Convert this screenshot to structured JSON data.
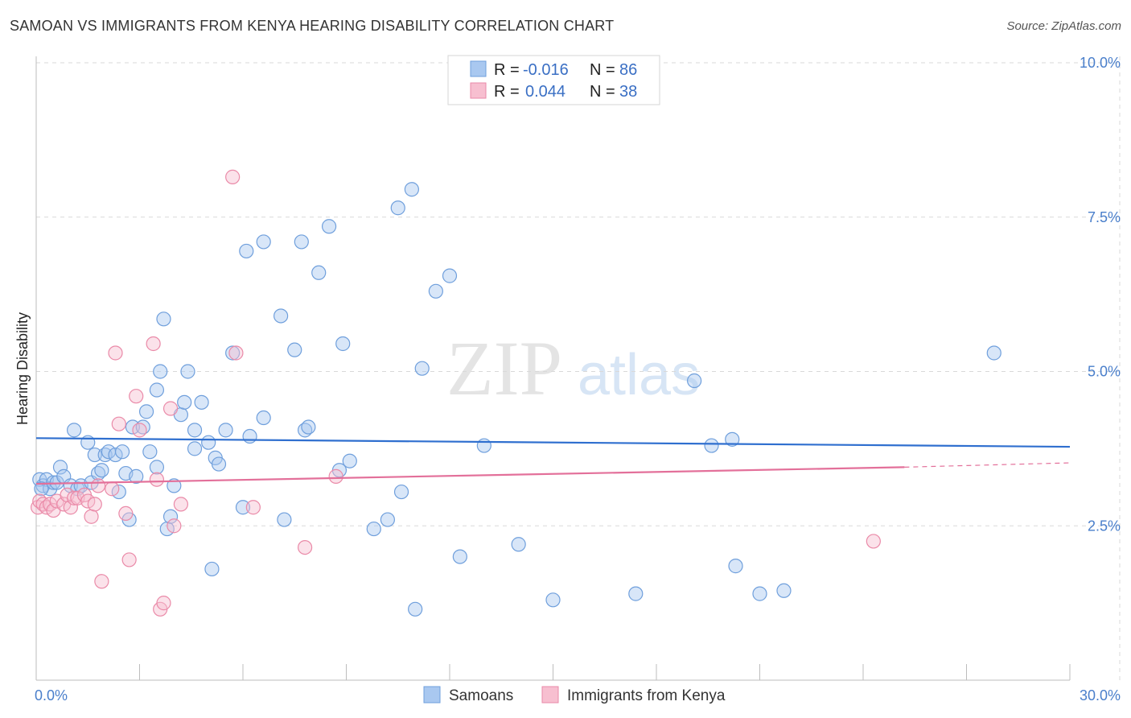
{
  "header": {
    "title": "SAMOAN VS IMMIGRANTS FROM KENYA HEARING DISABILITY CORRELATION CHART",
    "source": "Source: ZipAtlas.com"
  },
  "watermark": {
    "zip": "ZIP",
    "atlas": "atlas"
  },
  "colors": {
    "blue_fill": "#a9c8f0",
    "blue_stroke": "#6f9fdc",
    "blue_line": "#2f6fcf",
    "pink_fill": "#f7bfd0",
    "pink_stroke": "#ea8aa8",
    "pink_line": "#e3709a",
    "grid": "#d9d9d9",
    "tick_text": "#4a7fcb"
  },
  "legend": {
    "rows": [
      {
        "r_label": "R =",
        "r_value": "-0.016",
        "n_label": "N =",
        "n_value": "86"
      },
      {
        "r_label": "R =",
        "r_value": "0.044",
        "n_label": "N =",
        "n_value": "38"
      }
    ]
  },
  "chart_data": {
    "type": "scatter",
    "title": "SAMOAN VS IMMIGRANTS FROM KENYA HEARING DISABILITY CORRELATION CHART",
    "xlabel": "",
    "ylabel": "Hearing Disability",
    "xlim": [
      0,
      30
    ],
    "ylim": [
      0,
      10
    ],
    "x_ticks": [
      {
        "value": 0,
        "label": "0.0%"
      },
      {
        "value": 30,
        "label": "30.0%"
      }
    ],
    "y_ticks": [
      {
        "value": 2.5,
        "label": "2.5%"
      },
      {
        "value": 5.0,
        "label": "5.0%"
      },
      {
        "value": 7.5,
        "label": "7.5%"
      },
      {
        "value": 10.0,
        "label": "10.0%"
      }
    ],
    "grid": true,
    "legend_position": "top-center",
    "series": [
      {
        "name": "Samoans",
        "color": "#6f9fdc",
        "trend": {
          "x": [
            0,
            30
          ],
          "y": [
            3.92,
            3.78
          ]
        },
        "points": [
          [
            0.1,
            3.25
          ],
          [
            0.2,
            3.15
          ],
          [
            0.3,
            3.25
          ],
          [
            0.4,
            3.1
          ],
          [
            0.5,
            3.2
          ],
          [
            0.6,
            3.2
          ],
          [
            0.7,
            3.45
          ],
          [
            0.8,
            3.3
          ],
          [
            1.0,
            3.15
          ],
          [
            1.1,
            4.05
          ],
          [
            1.2,
            3.1
          ],
          [
            1.3,
            3.15
          ],
          [
            1.5,
            3.85
          ],
          [
            1.6,
            3.2
          ],
          [
            1.7,
            3.65
          ],
          [
            1.8,
            3.35
          ],
          [
            1.9,
            3.4
          ],
          [
            2.0,
            3.65
          ],
          [
            2.1,
            3.7
          ],
          [
            2.3,
            3.65
          ],
          [
            2.4,
            3.05
          ],
          [
            2.5,
            3.7
          ],
          [
            2.6,
            3.35
          ],
          [
            2.7,
            2.6
          ],
          [
            2.8,
            4.1
          ],
          [
            2.9,
            3.3
          ],
          [
            3.1,
            4.1
          ],
          [
            3.2,
            4.35
          ],
          [
            3.3,
            3.7
          ],
          [
            3.5,
            4.7
          ],
          [
            3.5,
            3.45
          ],
          [
            3.6,
            5.0
          ],
          [
            3.7,
            5.85
          ],
          [
            3.8,
            2.45
          ],
          [
            3.9,
            2.65
          ],
          [
            4.0,
            3.15
          ],
          [
            4.2,
            4.3
          ],
          [
            4.3,
            4.5
          ],
          [
            4.4,
            5.0
          ],
          [
            4.6,
            4.05
          ],
          [
            4.6,
            3.75
          ],
          [
            4.8,
            4.5
          ],
          [
            5.0,
            3.85
          ],
          [
            5.1,
            1.8
          ],
          [
            5.2,
            3.6
          ],
          [
            5.3,
            3.5
          ],
          [
            5.5,
            4.05
          ],
          [
            5.7,
            5.3
          ],
          [
            6.0,
            2.8
          ],
          [
            6.1,
            6.95
          ],
          [
            6.2,
            3.95
          ],
          [
            6.6,
            7.1
          ],
          [
            6.6,
            4.25
          ],
          [
            7.1,
            5.9
          ],
          [
            7.2,
            2.6
          ],
          [
            7.5,
            5.35
          ],
          [
            7.7,
            7.1
          ],
          [
            7.8,
            4.05
          ],
          [
            7.9,
            4.1
          ],
          [
            8.2,
            6.6
          ],
          [
            8.5,
            7.35
          ],
          [
            8.8,
            3.4
          ],
          [
            8.9,
            5.45
          ],
          [
            9.1,
            3.55
          ],
          [
            9.8,
            2.45
          ],
          [
            10.2,
            2.6
          ],
          [
            10.5,
            7.65
          ],
          [
            10.6,
            3.05
          ],
          [
            10.9,
            7.95
          ],
          [
            11.0,
            1.15
          ],
          [
            11.2,
            5.05
          ],
          [
            11.6,
            6.3
          ],
          [
            12.0,
            6.55
          ],
          [
            12.3,
            2.0
          ],
          [
            13.0,
            3.8
          ],
          [
            14.0,
            2.2
          ],
          [
            15.0,
            1.3
          ],
          [
            17.4,
            1.4
          ],
          [
            19.1,
            4.85
          ],
          [
            19.6,
            3.8
          ],
          [
            20.2,
            3.9
          ],
          [
            20.3,
            1.85
          ],
          [
            21.0,
            1.4
          ],
          [
            21.7,
            1.45
          ],
          [
            27.8,
            5.3
          ],
          [
            0.15,
            3.1
          ]
        ]
      },
      {
        "name": "Immigrants from Kenya",
        "color": "#ea8aa8",
        "trend": {
          "x": [
            0,
            25.2
          ],
          "y": [
            3.18,
            3.45
          ]
        },
        "trend_dashed": {
          "x": [
            25.2,
            30
          ],
          "y": [
            3.45,
            3.52
          ]
        },
        "points": [
          [
            0.05,
            2.8
          ],
          [
            0.1,
            2.9
          ],
          [
            0.2,
            2.85
          ],
          [
            0.3,
            2.8
          ],
          [
            0.4,
            2.85
          ],
          [
            0.5,
            2.75
          ],
          [
            0.6,
            2.9
          ],
          [
            0.8,
            2.85
          ],
          [
            0.9,
            3.0
          ],
          [
            1.0,
            2.8
          ],
          [
            1.1,
            2.95
          ],
          [
            1.2,
            2.95
          ],
          [
            1.4,
            3.0
          ],
          [
            1.5,
            2.9
          ],
          [
            1.6,
            2.65
          ],
          [
            1.7,
            2.85
          ],
          [
            1.8,
            3.15
          ],
          [
            1.9,
            1.6
          ],
          [
            2.2,
            3.1
          ],
          [
            2.3,
            5.3
          ],
          [
            2.4,
            4.15
          ],
          [
            2.6,
            2.7
          ],
          [
            2.7,
            1.95
          ],
          [
            2.9,
            4.6
          ],
          [
            3.0,
            4.05
          ],
          [
            3.4,
            5.45
          ],
          [
            3.5,
            3.25
          ],
          [
            3.6,
            1.15
          ],
          [
            3.7,
            1.25
          ],
          [
            3.9,
            4.4
          ],
          [
            4.0,
            2.5
          ],
          [
            4.2,
            2.85
          ],
          [
            5.7,
            8.15
          ],
          [
            5.8,
            5.3
          ],
          [
            6.3,
            2.8
          ],
          [
            7.8,
            2.15
          ],
          [
            8.7,
            3.3
          ],
          [
            24.3,
            2.25
          ]
        ]
      }
    ]
  },
  "bottom_legend": {
    "items": [
      {
        "label": "Samoans"
      },
      {
        "label": "Immigrants from Kenya"
      }
    ]
  }
}
